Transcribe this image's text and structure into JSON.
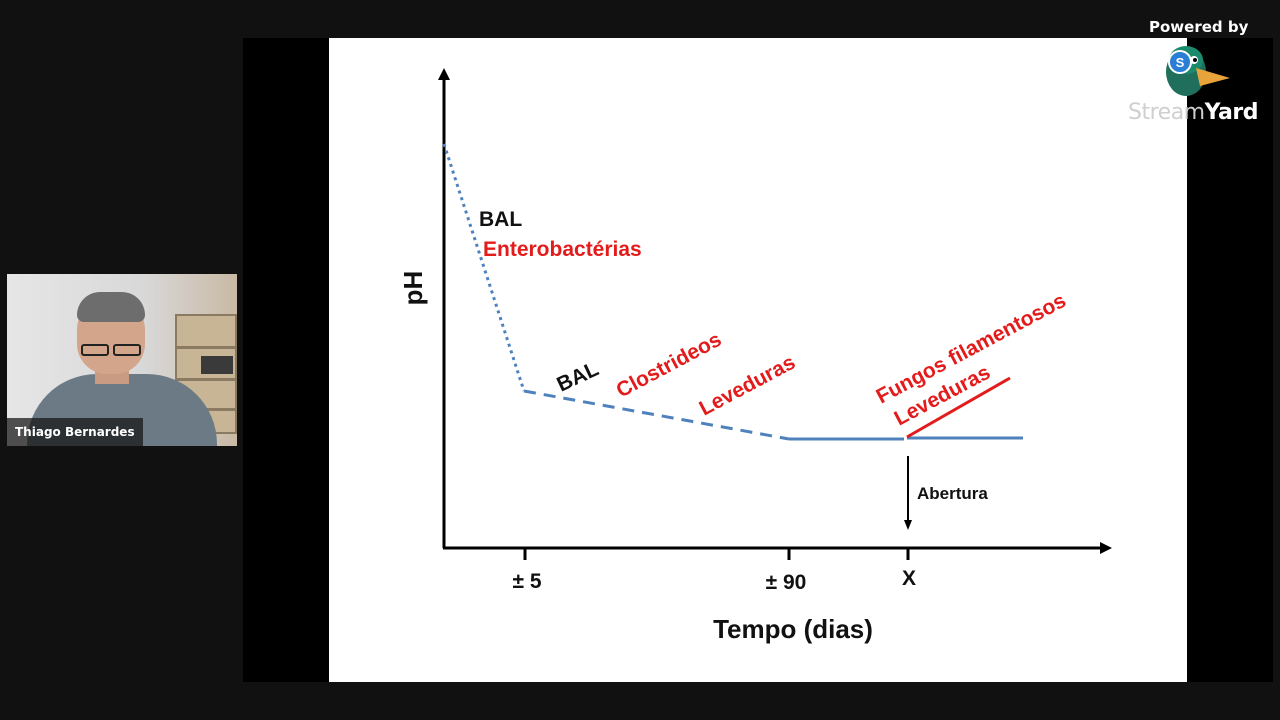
{
  "app": {
    "powered_by": "Powered by",
    "brand_left": "Stream",
    "brand_right": "Yard"
  },
  "webcam": {
    "participant_name": "Thiago Bernardes"
  },
  "chart_data": {
    "type": "line",
    "xlabel": "Tempo (dias)",
    "ylabel": "pH",
    "x_ticks": [
      "± 5",
      "± 90",
      "X"
    ],
    "labels": {
      "bal_1": "BAL",
      "enterobacterias": "Enterobactérias",
      "bal_2": "BAL",
      "clostrideos": "Clostrideos",
      "leveduras_1": "Leveduras",
      "fungos": "Fungos filamentosos",
      "leveduras_2": "Leveduras",
      "abertura": "Abertura"
    },
    "colors": {
      "curve": "#4f81bd",
      "annotation_red": "#e31b1b",
      "text_black": "#111111"
    }
  }
}
